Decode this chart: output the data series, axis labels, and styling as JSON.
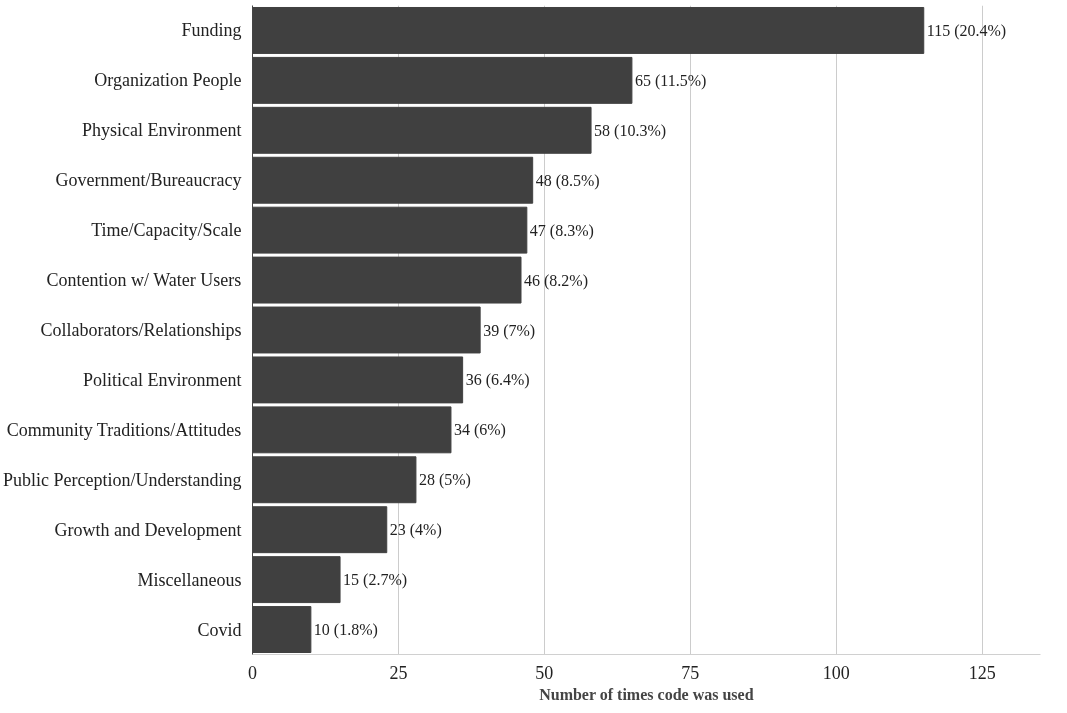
{
  "chart_data": {
    "type": "bar",
    "orientation": "horizontal",
    "xlabel": "Number of times code was used",
    "categories": [
      "Funding",
      "Organization People",
      "Physical Environment",
      "Government/Bureaucracy",
      "Time/Capacity/Scale",
      "Contention w/ Water Users",
      "Collaborators/Relationships",
      "Political Environment",
      "Community Traditions/Attitudes",
      "Public Perception/Understanding",
      "Growth and Development",
      "Miscellaneous",
      "Covid"
    ],
    "values": [
      115,
      65,
      58,
      48,
      47,
      46,
      39,
      36,
      34,
      28,
      23,
      15,
      10
    ],
    "value_labels": [
      "115 (20.4%)",
      "65 (11.5%)",
      "58 (10.3%)",
      "48 (8.5%)",
      "47 (8.3%)",
      "46 (8.2%)",
      "39 (7%)",
      "36 (6.4%)",
      "34 (6%)",
      "28 (5%)",
      "23 (4%)",
      "15 (2.7%)",
      "10 (1.8%)"
    ],
    "color": "#404040",
    "xlim": [
      0,
      135
    ],
    "xticks": [
      0,
      25,
      50,
      75,
      100,
      125
    ],
    "grid": "x"
  }
}
